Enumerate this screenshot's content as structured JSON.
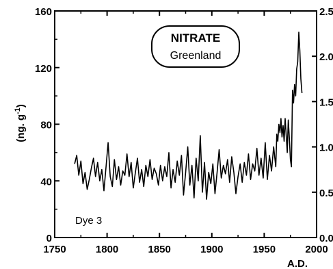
{
  "chart_data": {
    "type": "line",
    "title": "NITRATE",
    "subtitle": "Greenland",
    "xlabel": "A.D.",
    "ylabel": "(ng. g-1)",
    "annotation": "Dye 3",
    "xlim": [
      1750,
      2000
    ],
    "ylim": [
      0,
      160
    ],
    "y2lim": [
      0,
      2.5
    ],
    "xticks": [
      "1750",
      "1800",
      "1850",
      "1900",
      "1950",
      "2000"
    ],
    "yticks": [
      "0",
      "40",
      "80",
      "120",
      "160"
    ],
    "y2ticks": [
      "0.0",
      "0.5",
      "1.0",
      "1.5",
      "2.0",
      "2.5"
    ],
    "grid": false,
    "series": [
      {
        "name": "",
        "x": [
          1769,
          1771,
          1773,
          1775,
          1777,
          1779,
          1781,
          1783,
          1785,
          1787,
          1789,
          1791,
          1793,
          1795,
          1797,
          1799,
          1801,
          1803,
          1805,
          1807,
          1809,
          1811,
          1813,
          1815,
          1817,
          1819,
          1821,
          1823,
          1825,
          1827,
          1829,
          1831,
          1833,
          1835,
          1837,
          1839,
          1841,
          1843,
          1845,
          1847,
          1849,
          1851,
          1853,
          1855,
          1857,
          1859,
          1861,
          1863,
          1865,
          1867,
          1869,
          1871,
          1873,
          1875,
          1877,
          1879,
          1881,
          1883,
          1885,
          1887,
          1889,
          1891,
          1893,
          1895,
          1897,
          1899,
          1901,
          1903,
          1905,
          1907,
          1909,
          1911,
          1913,
          1915,
          1917,
          1919,
          1921,
          1923,
          1925,
          1927,
          1929,
          1931,
          1933,
          1935,
          1937,
          1939,
          1941,
          1943,
          1945,
          1947,
          1949,
          1951,
          1953,
          1955,
          1957,
          1959,
          1961,
          1962,
          1963,
          1964,
          1965,
          1966,
          1967,
          1968,
          1969,
          1970,
          1971,
          1972,
          1973,
          1974,
          1975,
          1976,
          1977,
          1978,
          1979,
          1980,
          1981,
          1982,
          1983,
          1984,
          1985,
          1986
        ],
        "values": [
          52,
          58,
          44,
          54,
          38,
          46,
          34,
          41,
          49,
          56,
          43,
          53,
          40,
          48,
          33,
          50,
          67,
          43,
          36,
          55,
          41,
          50,
          37,
          47,
          44,
          59,
          43,
          53,
          35,
          46,
          56,
          39,
          48,
          36,
          51,
          43,
          55,
          41,
          49,
          45,
          37,
          51,
          40,
          50,
          43,
          60,
          35,
          48,
          39,
          54,
          44,
          58,
          30,
          46,
          64,
          37,
          51,
          28,
          56,
          40,
          72,
          32,
          53,
          27,
          46,
          38,
          52,
          31,
          46,
          62,
          42,
          51,
          45,
          55,
          39,
          57,
          46,
          31,
          43,
          52,
          39,
          53,
          44,
          59,
          41,
          52,
          47,
          63,
          44,
          56,
          42,
          67,
          41,
          58,
          47,
          64,
          50,
          73,
          68,
          80,
          74,
          84,
          71,
          79,
          68,
          84,
          72,
          60,
          83,
          70,
          55,
          50,
          104,
          95,
          108,
          100,
          119,
          124,
          145,
          132,
          112,
          102
        ]
      }
    ]
  }
}
